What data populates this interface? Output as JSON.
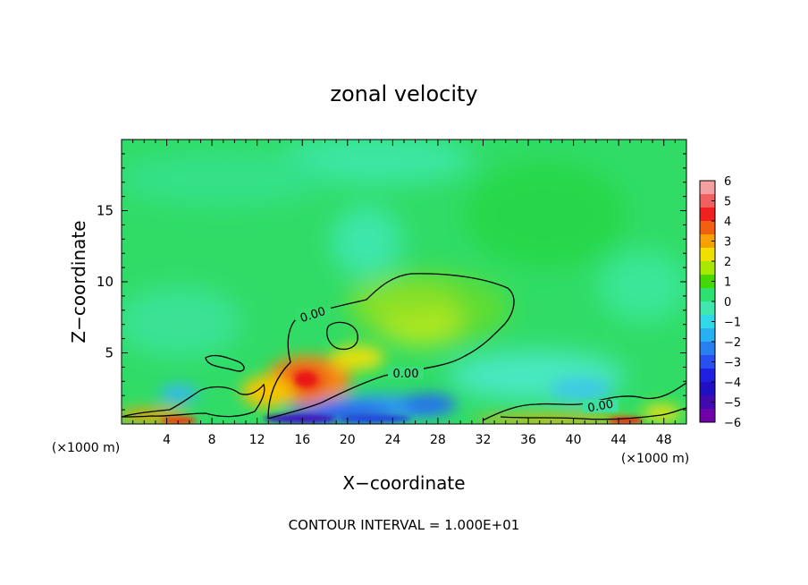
{
  "chart_data": {
    "type": "heatmap",
    "title": "zonal velocity",
    "xlabel": "X−coordinate",
    "ylabel": "Z−coordinate",
    "x_unit_left": "(×1000 m)",
    "x_unit_right": "(×1000 m)",
    "xlim": [
      0,
      50
    ],
    "ylim": [
      0,
      20
    ],
    "x_ticks": [
      4,
      8,
      12,
      16,
      20,
      24,
      28,
      32,
      36,
      40,
      44,
      48
    ],
    "y_ticks": [
      5,
      10,
      15
    ],
    "colorbar": {
      "min": -6,
      "max": 6,
      "labels": [
        "6",
        "5",
        "4",
        "3",
        "2",
        "1",
        "0",
        "−1",
        "−2",
        "−3",
        "−4",
        "−5",
        "−6"
      ],
      "colors": [
        "#f4a0a0",
        "#f06060",
        "#ee2020",
        "#f06010",
        "#f8a000",
        "#f0e000",
        "#a8e800",
        "#44d800",
        "#2ee070",
        "#40e8b0",
        "#30d8e8",
        "#28b0f0",
        "#2880f0",
        "#2850f0",
        "#2020e0",
        "#2010c0",
        "#400ab0",
        "#7000a8"
      ]
    },
    "contour_labels": [
      "0.00",
      "0.00",
      "0.00"
    ],
    "footer": "CONTOUR INTERVAL = 1.000E+01"
  }
}
